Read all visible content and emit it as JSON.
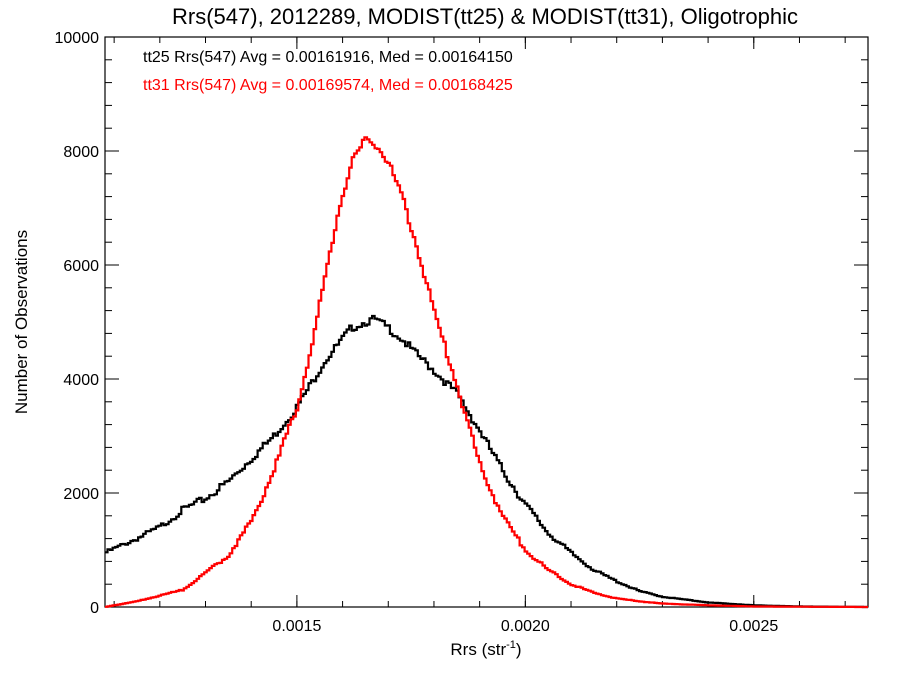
{
  "chart_data": {
    "type": "line",
    "step": true,
    "title": "Rrs(547), 2012289, MODIST(tt25) & MODIST(tt31), Oligotrophic",
    "xlabel": "Rrs (str",
    "xlabel_sup": "-1",
    "xlabel_close": ")",
    "ylabel": "Number of Observations",
    "xlim": [
      0.00108,
      0.00275
    ],
    "ylim": [
      0,
      10000
    ],
    "xticks": [
      0.0015,
      0.002,
      0.0025
    ],
    "xtick_labels": [
      "0.0015",
      "0.0020",
      "0.0025"
    ],
    "xminor_step": 0.0001,
    "yticks": [
      0,
      2000,
      4000,
      6000,
      8000,
      10000
    ],
    "ytick_labels": [
      "0",
      "2000",
      "4000",
      "6000",
      "8000",
      "10000"
    ],
    "yminor_step": 400,
    "grid": false,
    "annotations": [
      {
        "text": "tt25 Rrs(547) Avg = 0.00161916, Med = 0.00164150",
        "color": "#000000"
      },
      {
        "text": "tt31 Rrs(547) Avg = 0.00169574, Med = 0.00168425",
        "color": "#ff0000"
      }
    ],
    "series": [
      {
        "color": "#000000",
        "x": [
          0.00108,
          0.00115,
          0.0012,
          0.00125,
          0.0013,
          0.00135,
          0.0014,
          0.00145,
          0.0015,
          0.00153,
          0.00156,
          0.00159,
          0.00162,
          0.00165,
          0.00167,
          0.0017,
          0.00173,
          0.00176,
          0.0018,
          0.00185,
          0.0019,
          0.00195,
          0.002,
          0.00205,
          0.0021,
          0.00215,
          0.0022,
          0.00225,
          0.0023,
          0.0024,
          0.0025,
          0.0026,
          0.00275
        ],
        "y": [
          950,
          1200,
          1400,
          1700,
          1900,
          2200,
          2600,
          3000,
          3500,
          3900,
          4300,
          4600,
          4900,
          5000,
          5050,
          4900,
          4700,
          4450,
          4150,
          3750,
          3100,
          2400,
          1800,
          1300,
          950,
          650,
          450,
          280,
          180,
          80,
          30,
          10,
          0
        ]
      },
      {
        "color": "#ff0000",
        "x": [
          0.00108,
          0.00115,
          0.0012,
          0.00125,
          0.0013,
          0.00135,
          0.0014,
          0.00145,
          0.0015,
          0.00153,
          0.00156,
          0.00159,
          0.00162,
          0.00165,
          0.00167,
          0.0017,
          0.00173,
          0.00176,
          0.0018,
          0.00185,
          0.0019,
          0.00195,
          0.002,
          0.00205,
          0.0021,
          0.00215,
          0.0022,
          0.00225,
          0.0023,
          0.0024,
          0.0025,
          0.0026,
          0.00275
        ],
        "y": [
          0,
          100,
          200,
          300,
          600,
          900,
          1500,
          2400,
          3500,
          4500,
          5700,
          6900,
          7800,
          8200,
          8150,
          7800,
          7200,
          6400,
          5200,
          3900,
          2500,
          1600,
          1000,
          650,
          400,
          250,
          150,
          100,
          60,
          30,
          10,
          5,
          0
        ]
      }
    ]
  }
}
